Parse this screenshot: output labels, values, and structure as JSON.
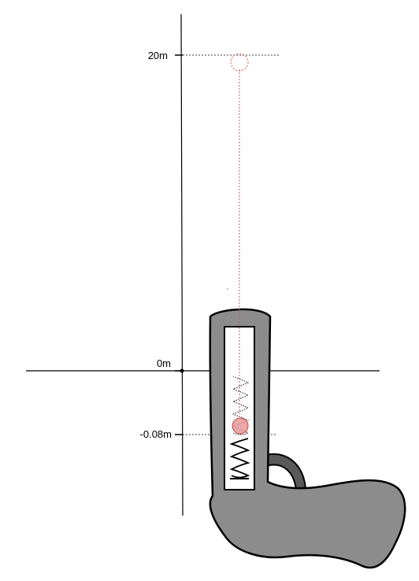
{
  "labels": {
    "top": "20m",
    "origin": "0m",
    "bottom": "-0.08m"
  },
  "colors": {
    "body": "#8c8c8c",
    "outline": "#000000",
    "trajectory": "#e05050",
    "ball_fill": "#e8989a",
    "ball_stroke": "#c04848"
  }
}
